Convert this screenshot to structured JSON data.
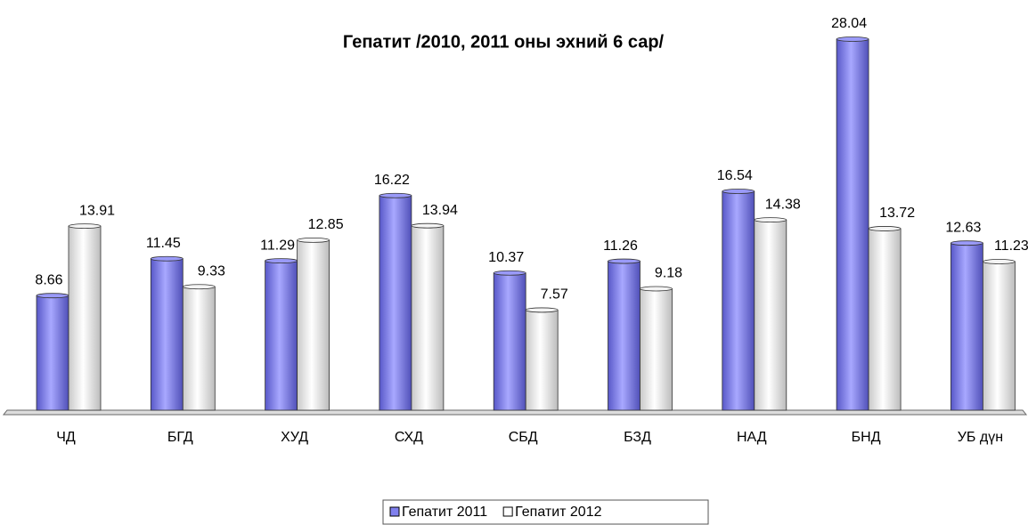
{
  "chart_data": {
    "type": "bar",
    "title": "Гепатит  /2010, 2011 оны эхний 6 сар/",
    "categories": [
      "ЧД",
      "БГД",
      "ХУД",
      "СХД",
      "СБД",
      "БЗД",
      "НАД",
      "БНД",
      "УБ дүн"
    ],
    "series": [
      {
        "name": "Гепатит 2011",
        "color": "#8080ee",
        "values": [
          8.66,
          11.45,
          11.29,
          16.22,
          10.37,
          11.26,
          16.54,
          28.04,
          12.63
        ]
      },
      {
        "name": "Гепатит 2012",
        "color": "#ffffff",
        "values": [
          13.91,
          9.33,
          12.85,
          13.94,
          7.57,
          9.18,
          14.38,
          13.72,
          11.23
        ]
      }
    ],
    "legend": "bottom"
  }
}
